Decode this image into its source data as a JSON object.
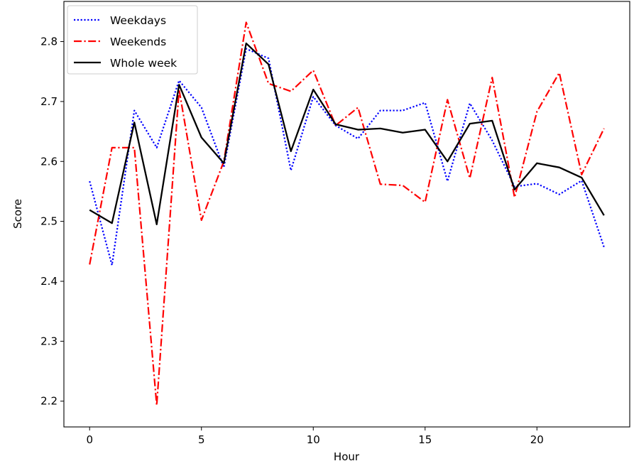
{
  "chart_data": {
    "type": "line",
    "title": "",
    "xlabel": "Hour",
    "ylabel": "Score",
    "xlim": [
      -1.15,
      24.15
    ],
    "ylim": [
      2.157,
      2.867
    ],
    "xticks": [
      0,
      5,
      10,
      15,
      20
    ],
    "xtick_labels": [
      "0",
      "5",
      "10",
      "15",
      "20"
    ],
    "yticks": [
      2.2,
      2.3,
      2.4,
      2.5,
      2.6,
      2.7,
      2.8
    ],
    "ytick_labels": [
      "2.2",
      "2.3",
      "2.4",
      "2.5",
      "2.6",
      "2.7",
      "2.8"
    ],
    "grid": false,
    "legend_position": "upper left",
    "x": [
      0,
      1,
      2,
      3,
      4,
      5,
      6,
      7,
      8,
      9,
      10,
      11,
      12,
      13,
      14,
      15,
      16,
      17,
      18,
      19,
      20,
      21,
      22,
      23
    ],
    "series": [
      {
        "name": "Weekdays",
        "color": "#0000ff",
        "linestyle": "dotted",
        "values": [
          2.567,
          2.427,
          2.685,
          2.623,
          2.735,
          2.69,
          2.59,
          2.788,
          2.772,
          2.585,
          2.708,
          2.66,
          2.638,
          2.685,
          2.685,
          2.698,
          2.567,
          2.697,
          2.635,
          2.558,
          2.563,
          2.545,
          2.568,
          2.457
        ]
      },
      {
        "name": "Weekends",
        "color": "#ff0000",
        "linestyle": "dashdot",
        "values": [
          2.428,
          2.623,
          2.623,
          2.193,
          2.72,
          2.502,
          2.6,
          2.832,
          2.73,
          2.717,
          2.752,
          2.66,
          2.69,
          2.562,
          2.56,
          2.532,
          2.703,
          2.572,
          2.74,
          2.54,
          2.683,
          2.748,
          2.578,
          2.655
        ]
      },
      {
        "name": "Whole week",
        "color": "#000000",
        "linestyle": "solid",
        "values": [
          2.519,
          2.497,
          2.665,
          2.495,
          2.728,
          2.64,
          2.597,
          2.797,
          2.762,
          2.617,
          2.72,
          2.662,
          2.653,
          2.655,
          2.648,
          2.653,
          2.6,
          2.663,
          2.668,
          2.553,
          2.597,
          2.59,
          2.573,
          2.51
        ]
      }
    ]
  }
}
